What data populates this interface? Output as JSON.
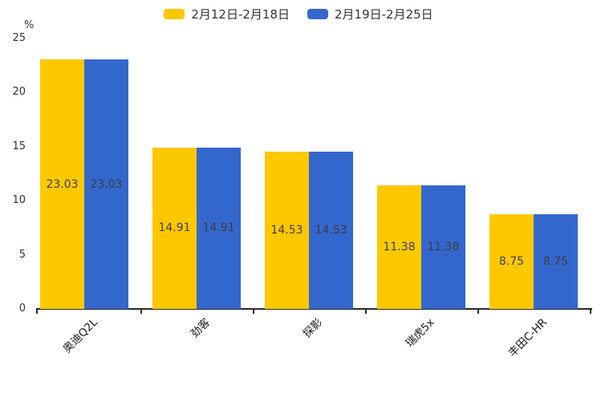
{
  "chart_data": {
    "type": "bar",
    "title": "",
    "unit_label": "%",
    "categories": [
      "奥迪Q2L",
      "劲客",
      "探影",
      "瑞虎5x",
      "丰田C-HR"
    ],
    "series": [
      {
        "name": "2月12日-2月18日",
        "color": "#FCC800",
        "values": [
          23.03,
          14.91,
          14.53,
          11.38,
          8.75
        ]
      },
      {
        "name": "2月19日-2月25日",
        "color": "#3467CE",
        "values": [
          23.03,
          14.91,
          14.53,
          11.38,
          8.75
        ]
      }
    ],
    "value_labels": [
      [
        "23.03",
        "14.91",
        "14.53",
        "11.38",
        "8.75"
      ],
      [
        "23.03",
        "14.91",
        "14.53",
        "11.38",
        "8.75"
      ]
    ],
    "ylim": [
      0,
      25
    ],
    "yticks": [
      "0",
      "5",
      "10",
      "15",
      "20",
      "25"
    ],
    "grid": false,
    "legend_position": "top",
    "colors": {
      "axis": "#2b2b2b",
      "tick_label": "#333333",
      "value_label": "#3d3d3d",
      "background": "#ffffff"
    }
  }
}
